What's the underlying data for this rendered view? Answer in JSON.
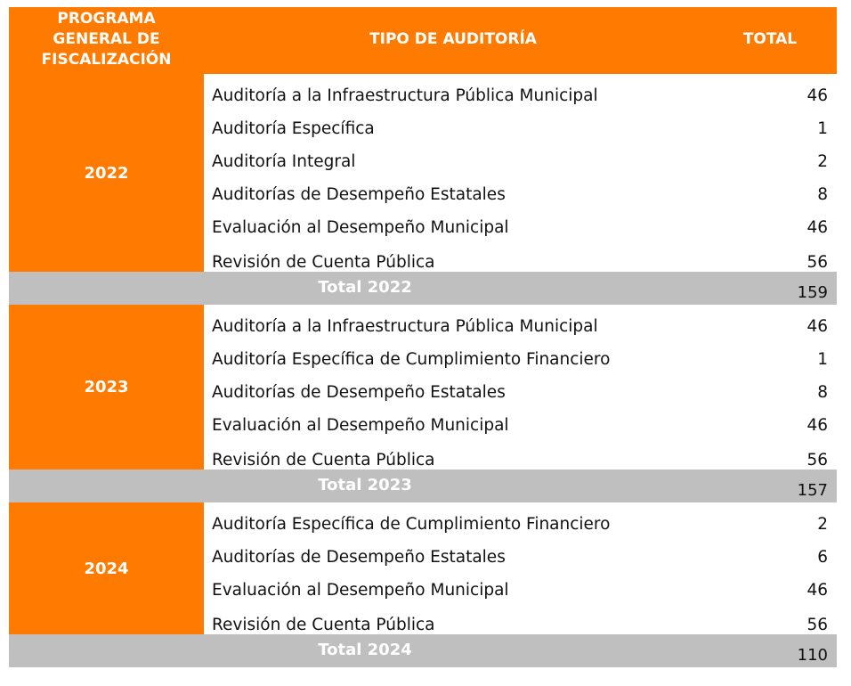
{
  "header": {
    "program_line1": "PROGRAMA",
    "program_line2": "GENERAL DE",
    "program_line3": "FISCALIZACIÓN",
    "type": "TIPO DE AUDITORÍA",
    "total": "TOTAL"
  },
  "colors": {
    "accent": "#ff7a00",
    "total_row": "#bfbfbf"
  },
  "groups": [
    {
      "year": "2022",
      "rows": [
        {
          "type": "Auditoría a la Infraestructura Pública Municipal",
          "total": "46"
        },
        {
          "type": "Auditoría Específica",
          "total": "1"
        },
        {
          "type": "Auditoría Integral",
          "total": "2"
        },
        {
          "type": "Auditorías de Desempeño Estatales",
          "total": "8"
        },
        {
          "type": "Evaluación al Desempeño Municipal",
          "total": "46"
        },
        {
          "type": "Revisión de Cuenta Pública",
          "total": "56"
        }
      ],
      "total_label": "Total 2022",
      "total_value": "159"
    },
    {
      "year": "2023",
      "rows": [
        {
          "type": "Auditoría a la Infraestructura Pública Municipal",
          "total": "46"
        },
        {
          "type": "Auditoría Específica de Cumplimiento Financiero",
          "total": "1"
        },
        {
          "type": "Auditorías de Desempeño Estatales",
          "total": "8"
        },
        {
          "type": "Evaluación al Desempeño Municipal",
          "total": "46"
        },
        {
          "type": "Revisión de Cuenta Pública",
          "total": "56"
        }
      ],
      "total_label": "Total 2023",
      "total_value": "157"
    },
    {
      "year": "2024",
      "rows": [
        {
          "type": "Auditoría Específica de Cumplimiento Financiero",
          "total": "2"
        },
        {
          "type": "Auditorías de Desempeño Estatales",
          "total": "6"
        },
        {
          "type": "Evaluación al Desempeño Municipal",
          "total": "46"
        },
        {
          "type": "Revisión de Cuenta Pública",
          "total": "56"
        }
      ],
      "total_label": "Total 2024",
      "total_value": "110"
    }
  ]
}
